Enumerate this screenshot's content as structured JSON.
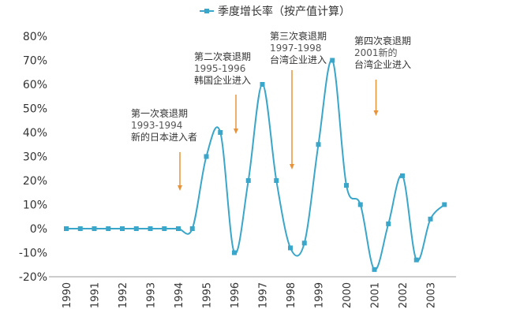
{
  "chart_data": {
    "type": "line",
    "legend": {
      "label": "季度增长率（按产值计算）",
      "position": "top-center"
    },
    "x_ticks": [
      "1990",
      "1991",
      "1992",
      "1993",
      "1994",
      "1995",
      "1996",
      "1997",
      "1998",
      "1999",
      "2000",
      "2001",
      "2002",
      "2003"
    ],
    "y_ticks": [
      "80%",
      "70%",
      "60%",
      "50%",
      "40%",
      "30%",
      "20%",
      "10%",
      "0%",
      "-10%",
      "-20%"
    ],
    "ylim": [
      -20,
      80
    ],
    "grid": false,
    "series": [
      {
        "name": "季度增长率（按产值计算）",
        "color": "#3aa6c9",
        "x": [
          1990.0,
          1990.5,
          1991.0,
          1991.5,
          1992.0,
          1992.5,
          1993.0,
          1993.5,
          1994.0,
          1994.5,
          1995.0,
          1995.5,
          1996.0,
          1996.5,
          1997.0,
          1997.5,
          1998.0,
          1998.5,
          1999.0,
          1999.5,
          2000.0,
          2000.5,
          2001.0,
          2001.5,
          2002.0,
          2002.5,
          2003.0,
          2003.5
        ],
        "y": [
          0,
          0,
          0,
          0,
          0,
          0,
          0,
          0,
          0,
          0,
          30,
          40,
          -10,
          20,
          60,
          20,
          -8,
          -6,
          35,
          70,
          18,
          10,
          -17,
          2,
          22,
          -13,
          4,
          10
        ]
      }
    ],
    "annotations": [
      {
        "lines": [
          "第一次衰退期",
          "1993-1994",
          "新的日本进入者"
        ],
        "arrow_x": 1994.0
      },
      {
        "lines": [
          "第二次衰退期",
          "1995-1996",
          "韩国企业进入"
        ],
        "arrow_x": 1996.0
      },
      {
        "lines": [
          "第三次衰退期",
          "1997-1998",
          "台湾企业进入"
        ],
        "arrow_x": 1998.0
      },
      {
        "lines": [
          "第四次衰退期",
          "2001新的",
          "台湾企业进入"
        ],
        "arrow_x": 2001.0
      }
    ],
    "colors": {
      "line": "#3aa6c9",
      "arrow": "#e8923a",
      "axis": "#999999"
    }
  }
}
